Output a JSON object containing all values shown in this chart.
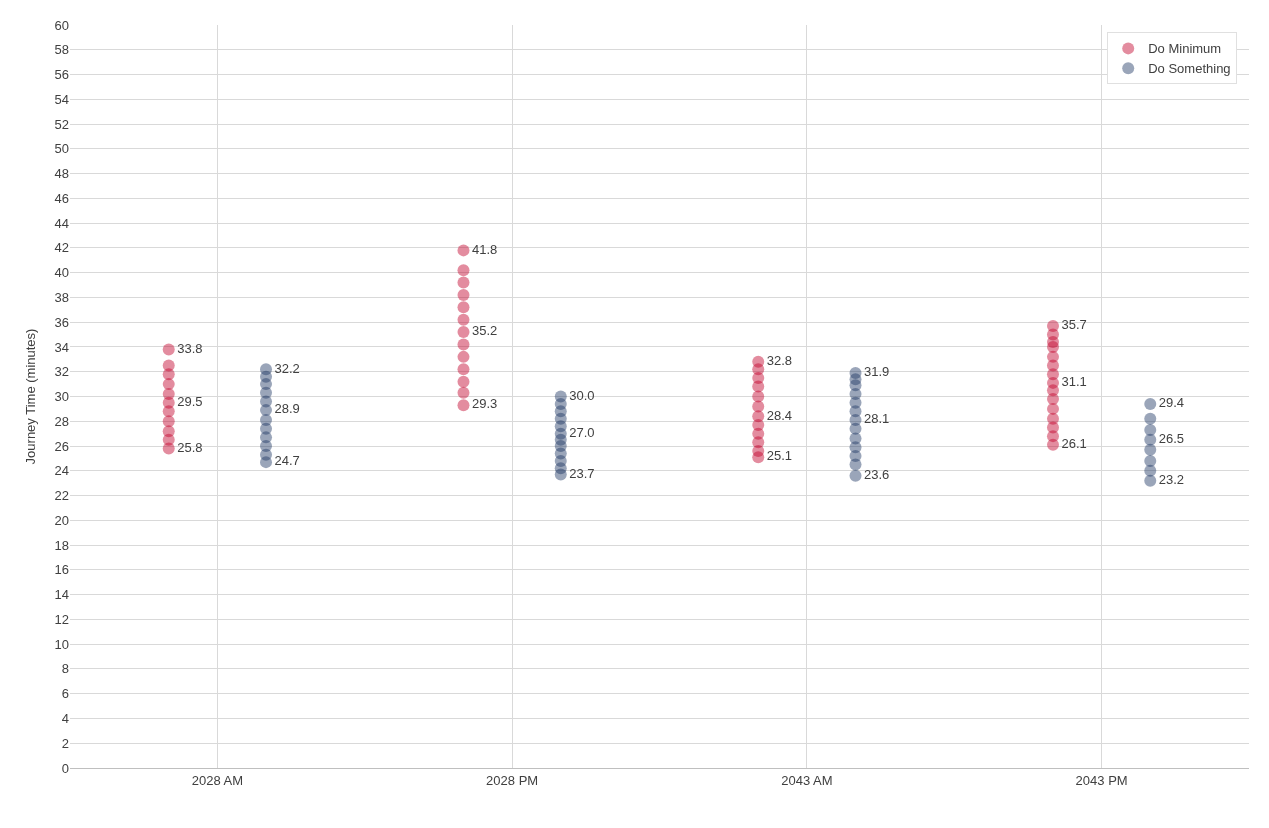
{
  "chart_data": {
    "type": "scatter",
    "ylabel": "Journey Time (minutes)",
    "categories": [
      "2028 AM",
      "2028 PM",
      "2043 AM",
      "2043 PM"
    ],
    "ylim": [
      0,
      60
    ],
    "yticks": [
      0,
      2,
      4,
      6,
      8,
      10,
      12,
      14,
      16,
      18,
      20,
      22,
      24,
      26,
      28,
      30,
      32,
      34,
      36,
      38,
      40,
      42,
      44,
      46,
      48,
      50,
      52,
      54,
      56,
      58,
      60
    ],
    "grid": true,
    "legend": "top right",
    "marker": "circle",
    "series": [
      {
        "name": "Do Minimum",
        "color": "#c0002a",
        "x": [
          "2028 AM",
          "2028 AM",
          "2028 AM",
          "2028 AM",
          "2028 AM",
          "2028 AM",
          "2028 AM",
          "2028 AM",
          "2028 AM",
          "2028 AM",
          "2028 AM",
          "2028 PM",
          "2028 PM",
          "2028 PM",
          "2028 PM",
          "2028 PM",
          "2028 PM",
          "2028 PM",
          "2028 PM",
          "2028 PM",
          "2028 PM",
          "2028 PM",
          "2028 PM",
          "2028 PM",
          "2043 AM",
          "2043 AM",
          "2043 AM",
          "2043 AM",
          "2043 AM",
          "2043 AM",
          "2043 AM",
          "2043 AM",
          "2043 AM",
          "2043 AM",
          "2043 AM",
          "2043 AM",
          "2043 PM",
          "2043 PM",
          "2043 PM",
          "2043 PM",
          "2043 PM",
          "2043 PM",
          "2043 PM",
          "2043 PM",
          "2043 PM",
          "2043 PM",
          "2043 PM",
          "2043 PM",
          "2043 PM",
          "2043 PM",
          "2043 PM"
        ],
        "values": [
          25.8,
          26.5,
          27.2,
          28.0,
          28.8,
          29.5,
          30.2,
          31.0,
          31.8,
          32.5,
          33.8,
          29.3,
          30.3,
          31.2,
          32.2,
          33.2,
          34.2,
          35.2,
          36.2,
          37.2,
          38.2,
          39.2,
          40.2,
          41.8,
          25.1,
          25.6,
          26.3,
          27.0,
          27.7,
          28.4,
          29.2,
          30.0,
          30.8,
          31.5,
          32.2,
          32.8,
          26.1,
          26.8,
          27.5,
          28.2,
          29.0,
          29.8,
          30.5,
          31.1,
          31.8,
          32.5,
          33.2,
          34.0,
          34.4,
          35.0,
          35.7
        ],
        "value_labels": [
          "25.8",
          null,
          null,
          null,
          null,
          "29.5",
          null,
          null,
          null,
          null,
          "33.8",
          "29.3",
          null,
          null,
          null,
          null,
          null,
          "35.2",
          null,
          null,
          null,
          null,
          null,
          "41.8",
          "25.1",
          null,
          null,
          null,
          null,
          "28.4",
          null,
          null,
          null,
          null,
          null,
          "32.8",
          "26.1",
          null,
          null,
          null,
          null,
          null,
          null,
          "31.1",
          null,
          null,
          null,
          null,
          null,
          null,
          "35.7"
        ]
      },
      {
        "name": "Do Something",
        "color": "#1f3864",
        "x": [
          "2028 AM",
          "2028 AM",
          "2028 AM",
          "2028 AM",
          "2028 AM",
          "2028 AM",
          "2028 AM",
          "2028 AM",
          "2028 AM",
          "2028 AM",
          "2028 AM",
          "2028 AM",
          "2028 PM",
          "2028 PM",
          "2028 PM",
          "2028 PM",
          "2028 PM",
          "2028 PM",
          "2028 PM",
          "2028 PM",
          "2028 PM",
          "2028 PM",
          "2028 PM",
          "2028 PM",
          "2043 AM",
          "2043 AM",
          "2043 AM",
          "2043 AM",
          "2043 AM",
          "2043 AM",
          "2043 AM",
          "2043 AM",
          "2043 AM",
          "2043 AM",
          "2043 AM",
          "2043 AM",
          "2043 AM",
          "2043 PM",
          "2043 PM",
          "2043 PM",
          "2043 PM",
          "2043 PM",
          "2043 PM",
          "2043 PM",
          "2043 PM"
        ],
        "values": [
          24.7,
          25.3,
          26.0,
          26.7,
          27.4,
          28.1,
          28.9,
          29.6,
          30.3,
          31.0,
          31.6,
          32.2,
          23.7,
          24.2,
          24.8,
          25.4,
          26.0,
          26.5,
          27.0,
          27.6,
          28.2,
          28.8,
          29.4,
          30.0,
          23.6,
          24.5,
          25.2,
          25.9,
          26.6,
          27.4,
          28.1,
          28.8,
          29.5,
          30.2,
          30.9,
          31.4,
          31.9,
          23.2,
          24.0,
          24.8,
          25.7,
          26.5,
          27.3,
          28.2,
          29.4
        ],
        "value_labels": [
          "24.7",
          null,
          null,
          null,
          null,
          null,
          "28.9",
          null,
          null,
          null,
          null,
          "32.2",
          "23.7",
          null,
          null,
          null,
          null,
          null,
          "27.0",
          null,
          null,
          null,
          null,
          "30.0",
          "23.6",
          null,
          null,
          null,
          null,
          null,
          "28.1",
          null,
          null,
          null,
          null,
          null,
          "31.9",
          "23.2",
          null,
          null,
          null,
          "26.5",
          null,
          null,
          "29.4"
        ]
      }
    ]
  }
}
